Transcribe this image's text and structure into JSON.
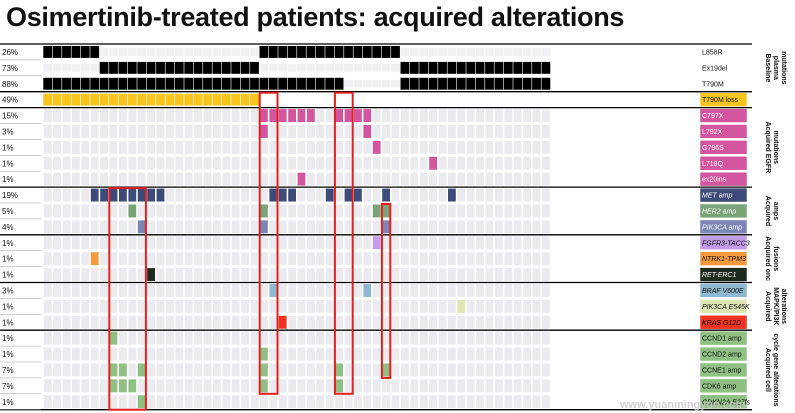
{
  "title": "Osimertinib-treated patients: acquired alterations",
  "watermark": "www.yuanmingyun.com",
  "colors": {
    "baseline": "#000000",
    "t790m_loss": "#f7c51e",
    "egfr": "#d2559d",
    "met": "#3e4a78",
    "her2": "#7aa377",
    "pik3ca_amp": "#7b86b5",
    "fgfr3": "#c39be8",
    "ntrk1": "#f39a3e",
    "ret": "#1f2a1f",
    "braf": "#8db8cf",
    "pik3ca_mut": "#dfe6b4",
    "kras": "#ee3322",
    "cell_cycle": "#8fbf83",
    "highlight": "#e0201e",
    "empty": "#ebebef"
  },
  "chart_data": {
    "type": "heatmap",
    "title": "Osimertinib-treated patients: acquired alterations",
    "n_patients": 54,
    "groups": [
      {
        "label": [
          "Baseline",
          "plasma",
          "mutations"
        ],
        "rows": [
          0,
          1,
          2
        ]
      },
      {
        "label": [
          "Acquired EGFR",
          "mutations"
        ],
        "rows": [
          4,
          5,
          6,
          7,
          8
        ]
      },
      {
        "label": [
          "Acquired",
          "amps"
        ],
        "rows": [
          9,
          10,
          11
        ]
      },
      {
        "label": [
          "Acquired onc",
          "fusions"
        ],
        "rows": [
          12,
          13,
          14
        ]
      },
      {
        "label": [
          "Acquired",
          "MAPK/PI3K",
          "alterations"
        ],
        "rows": [
          15,
          16,
          17
        ]
      },
      {
        "label": [
          "Acquired cell",
          "cycle gene alterations"
        ],
        "rows": [
          18,
          19,
          20,
          21,
          22
        ]
      }
    ],
    "rows": [
      {
        "pct": "26%",
        "label": "L858R",
        "label_bg": "#ffffff",
        "label_color": "#111111",
        "color": "#000000",
        "patients": [
          0,
          1,
          2,
          3,
          4,
          5,
          23,
          24,
          25,
          26,
          27,
          28,
          29,
          30,
          31,
          32,
          33,
          34,
          35,
          36,
          37
        ]
      },
      {
        "pct": "73%",
        "label": "Ex19del",
        "label_bg": "#ffffff",
        "label_color": "#111111",
        "color": "#000000",
        "patients": [
          6,
          7,
          8,
          9,
          10,
          11,
          12,
          13,
          14,
          15,
          16,
          17,
          18,
          19,
          20,
          21,
          22,
          38,
          39,
          40,
          41,
          42,
          43,
          44,
          45,
          46,
          47,
          48,
          49,
          50,
          51,
          52,
          53
        ]
      },
      {
        "pct": "88%",
        "label": "T790M",
        "label_bg": "#ffffff",
        "label_color": "#111111",
        "color": "#000000",
        "patients": [
          0,
          1,
          2,
          3,
          4,
          5,
          6,
          7,
          8,
          9,
          10,
          11,
          12,
          13,
          14,
          15,
          16,
          17,
          18,
          19,
          20,
          21,
          22,
          23,
          24,
          25,
          26,
          27,
          28,
          29,
          30,
          31,
          38,
          39,
          40,
          41,
          42,
          43,
          44,
          45,
          46,
          47,
          48,
          49,
          50,
          51,
          52,
          53
        ]
      },
      {
        "pct": "49%",
        "label": "T790M loss",
        "label_bg": "#f7c51e",
        "label_color": "#111111",
        "color": "#f7c51e",
        "patients": [
          0,
          1,
          2,
          3,
          4,
          5,
          6,
          7,
          8,
          9,
          10,
          11,
          12,
          13,
          14,
          15,
          16,
          17,
          18,
          19,
          20,
          21,
          22
        ]
      },
      {
        "pct": "15%",
        "label": "C797X",
        "label_bg": "#d2559d",
        "label_color": "#ffffff",
        "color": "#d2559d",
        "patients": [
          23,
          24,
          25,
          26,
          27,
          28,
          31,
          32,
          33,
          34
        ]
      },
      {
        "pct": "3%",
        "label": "L792X",
        "label_bg": "#d2559d",
        "label_color": "#ffffff",
        "color": "#d2559d",
        "patients": [
          23,
          34
        ]
      },
      {
        "pct": "1%",
        "label": "G796S",
        "label_bg": "#d2559d",
        "label_color": "#ffffff",
        "color": "#d2559d",
        "patients": [
          35
        ]
      },
      {
        "pct": "1%",
        "label": "L718Q",
        "label_bg": "#d2559d",
        "label_color": "#ffffff",
        "color": "#d2559d",
        "patients": [
          41
        ]
      },
      {
        "pct": "1%",
        "label": "ex20ins",
        "label_bg": "#d2559d",
        "label_color": "#ffffff",
        "color": "#d2559d",
        "patients": [
          27
        ]
      },
      {
        "pct": "19%",
        "label": "MET amp",
        "label_bg": "#3e4a78",
        "label_color": "#ffffff",
        "color": "#3e4a78",
        "patients": [
          5,
          6,
          7,
          8,
          9,
          10,
          11,
          12,
          24,
          25,
          26,
          30,
          32,
          33,
          36,
          43
        ]
      },
      {
        "pct": "5%",
        "label": "HER2 amp",
        "label_bg": "#7aa377",
        "label_color": "#ffffff",
        "color": "#7aa377",
        "patients": [
          9,
          23,
          35,
          36
        ]
      },
      {
        "pct": "4%",
        "label": "PIK3CA amp",
        "label_bg": "#7b86b5",
        "label_color": "#ffffff",
        "color": "#7b86b5",
        "patients": [
          10,
          23,
          36
        ]
      },
      {
        "pct": "1%",
        "label": "FGFR3-TACC3",
        "label_bg": "#c39be8",
        "label_color": "#111111",
        "color": "#c39be8",
        "patients": [
          35
        ]
      },
      {
        "pct": "1%",
        "label": "NTRK1-TPM3",
        "label_bg": "#f39a3e",
        "label_color": "#111111",
        "color": "#f39a3e",
        "patients": [
          5
        ]
      },
      {
        "pct": "1%",
        "label": "RET-ERC1",
        "label_bg": "#1f2a1f",
        "label_color": "#ffffff",
        "color": "#1f2a1f",
        "patients": [
          11
        ]
      },
      {
        "pct": "3%",
        "label": "BRAF V600E",
        "label_bg": "#8db8cf",
        "label_color": "#111111",
        "color": "#8db8cf",
        "patients": [
          24,
          34
        ]
      },
      {
        "pct": "1%",
        "label": "PIK3CA E545K",
        "label_bg": "#dfe6b4",
        "label_color": "#111111",
        "color": "#dfe6b4",
        "patients": [
          44
        ]
      },
      {
        "pct": "1%",
        "label": "KRAS G12D",
        "label_bg": "#ee3322",
        "label_color": "#111111",
        "color": "#ee3322",
        "patients": [
          25
        ]
      },
      {
        "pct": "1%",
        "label": "CCND1 amp",
        "label_bg": "#8fbf83",
        "label_color": "#111111",
        "color": "#8fbf83",
        "patients": [
          7
        ]
      },
      {
        "pct": "1%",
        "label": "CCND2 amp",
        "label_bg": "#8fbf83",
        "label_color": "#111111",
        "color": "#8fbf83",
        "patients": [
          23
        ]
      },
      {
        "pct": "7%",
        "label": "CCNE1 amp",
        "label_bg": "#8fbf83",
        "label_color": "#111111",
        "color": "#8fbf83",
        "patients": [
          7,
          8,
          10,
          23,
          31,
          36
        ]
      },
      {
        "pct": "7%",
        "label": "CDK6 amp",
        "label_bg": "#8fbf83",
        "label_color": "#111111",
        "color": "#8fbf83",
        "patients": [
          7,
          8,
          9,
          23,
          31
        ]
      },
      {
        "pct": "1%",
        "label": "CDKN2A E27fs",
        "label_bg": "#8fbf83",
        "label_color": "#111111",
        "color": "#8fbf83",
        "patients": [
          10
        ]
      }
    ],
    "highlight_boxes": [
      {
        "patients": [
          7,
          10
        ],
        "rows": [
          9,
          22
        ]
      },
      {
        "patients": [
          23,
          24
        ],
        "rows": [
          3,
          21
        ]
      },
      {
        "patients": [
          31,
          32
        ],
        "rows": [
          3,
          21
        ]
      },
      {
        "patients": [
          36,
          36
        ],
        "rows": [
          10,
          20
        ]
      }
    ]
  }
}
